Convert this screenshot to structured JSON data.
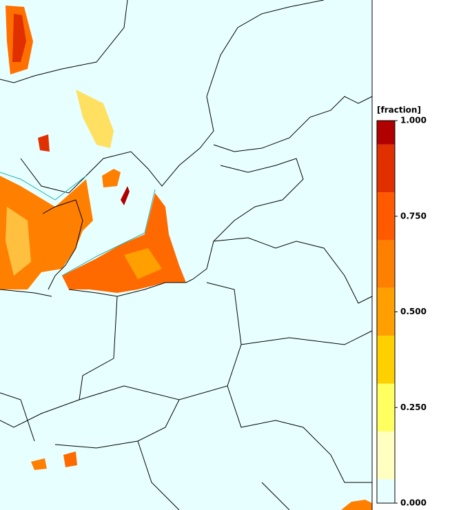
{
  "colorbar": {
    "label": "[fraction]",
    "lim": [
      0,
      1
    ],
    "ticks": [
      {
        "value": 1,
        "label": "1.000"
      },
      {
        "value": 0.75,
        "label": "0.750"
      },
      {
        "value": 0.5,
        "label": "0.500"
      },
      {
        "value": 0.25,
        "label": "0.250"
      },
      {
        "value": 0,
        "label": "0.000"
      }
    ],
    "bounds": [
      0,
      0.0625,
      0.1875,
      0.3125,
      0.4375,
      0.5625,
      0.6875,
      0.8125,
      0.9375,
      1
    ],
    "colors": [
      "#e8ffff",
      "#ffffc0",
      "#ffff60",
      "#ffd000",
      "#ffa000",
      "#ff8000",
      "#ff5a00",
      "#e03000",
      "#b00000"
    ]
  }
}
